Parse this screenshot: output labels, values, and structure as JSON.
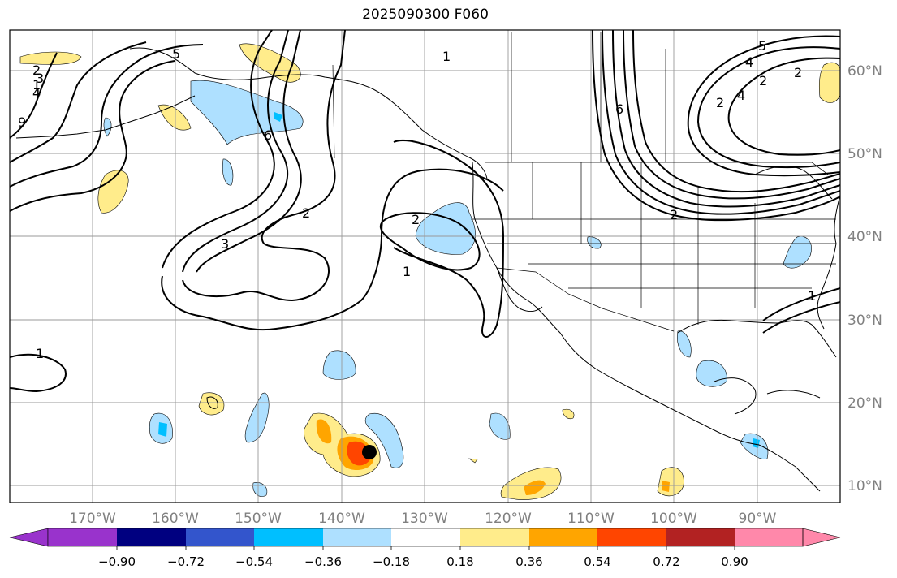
{
  "title": "2025090300 F060",
  "lon_labels": [
    "170°W",
    "160°W",
    "150°W",
    "140°W",
    "130°W",
    "120°W",
    "110°W",
    "100°W",
    "90°W"
  ],
  "lat_labels": [
    "60°N",
    "50°N",
    "40°N",
    "30°N",
    "20°N",
    "10°N"
  ],
  "colorbar": {
    "ticks": [
      "−0.90",
      "−0.72",
      "−0.54",
      "−0.36",
      "−0.18",
      "0.18",
      "0.36",
      "0.54",
      "0.72",
      "0.90"
    ],
    "colors": [
      "#9933cc",
      "#000080",
      "#3355cc",
      "#00bfff",
      "#aee0ff",
      "#ffffff",
      "#ffec8b",
      "#ffa500",
      "#ff4500",
      "#b22222",
      "#ff88aa"
    ]
  },
  "contour_labels": [
    "1",
    "2",
    "3",
    "4",
    "5",
    "6",
    "9",
    "3",
    "2",
    "1",
    "2",
    "1",
    "1",
    "2",
    "4",
    "5",
    "6",
    "2",
    "4",
    "2",
    "1",
    "2"
  ],
  "colors": {
    "contour": "#000000",
    "grid": "#999999",
    "tick_text": "#808080",
    "marker": "#000000"
  }
}
